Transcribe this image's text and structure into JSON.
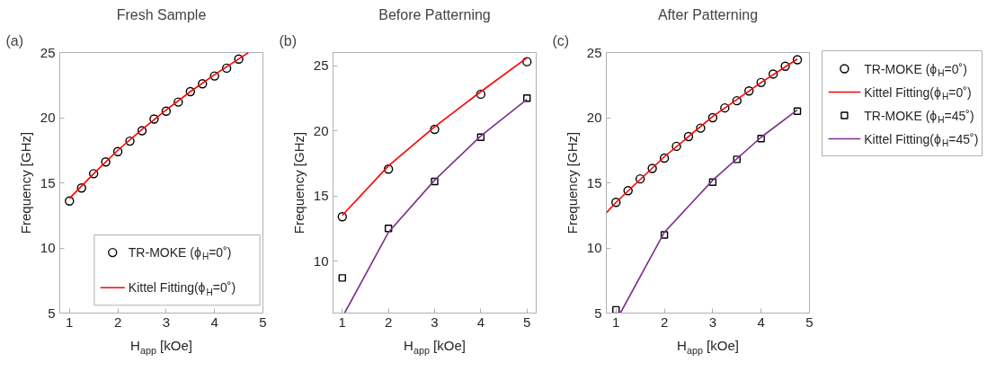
{
  "chart_data": [
    {
      "type": "scatter",
      "title": "Fresh Sample",
      "xlabel": "H$_{app}$ [kOe]",
      "ylabel": "Frequency [GHz]",
      "annotations": [
        "(a)"
      ],
      "xlim": [
        0.8,
        5
      ],
      "xticks": [
        1,
        2,
        3,
        4,
        5
      ],
      "ylim": [
        5,
        25
      ],
      "yticks": [
        5,
        10,
        15,
        20,
        25
      ],
      "legend": "bottom right",
      "series": [
        {
          "name": "TR-MOKE (ϕ$_{H}$=0˚)",
          "marker": "circle",
          "color": "#000000",
          "x": [
            1,
            1.25,
            1.5,
            1.75,
            2,
            2.25,
            2.5,
            2.75,
            3,
            3.25,
            3.5,
            3.75,
            4,
            4.25,
            4.5
          ],
          "values": [
            13.6,
            14.6,
            15.7,
            16.6,
            17.4,
            18.2,
            19.0,
            19.9,
            20.5,
            21.2,
            22.0,
            22.6,
            23.2,
            23.8,
            24.5
          ]
        },
        {
          "name": "Kittel Fitting(ϕ$_{H}$=0˚)",
          "type": "line",
          "color": "#ff0000",
          "x": [
            1,
            1.5,
            2,
            2.5,
            3,
            3.5,
            4,
            4.7
          ],
          "values": [
            13.8,
            15.7,
            17.5,
            19.1,
            20.6,
            22.0,
            23.3,
            25.0
          ]
        }
      ]
    },
    {
      "type": "scatter",
      "title": "Before Patterning",
      "xlabel": "H$_{app}$ [kOe]",
      "ylabel": "Frequency [GHz]",
      "annotations": [
        "(b)"
      ],
      "xlim": [
        0.8,
        5.2
      ],
      "xticks": [
        1,
        2,
        3,
        4,
        5
      ],
      "ylim": [
        6,
        26
      ],
      "yticks": [
        10,
        15,
        20,
        25
      ],
      "series": [
        {
          "marker": "circle",
          "color": "#000000",
          "x": [
            1,
            2,
            3,
            4,
            5
          ],
          "values": [
            13.4,
            17.05,
            20.1,
            22.8,
            25.3
          ]
        },
        {
          "type": "line",
          "color": "#ff0000",
          "x": [
            1,
            2,
            3,
            4,
            5
          ],
          "values": [
            13.5,
            17.3,
            20.3,
            23.0,
            25.6
          ]
        },
        {
          "marker": "square",
          "color": "#000000",
          "x": [
            1,
            2,
            3,
            4,
            5
          ],
          "values": [
            8.7,
            12.5,
            16.1,
            19.5,
            22.5
          ]
        },
        {
          "type": "line",
          "color": "#7e2f8e",
          "x": [
            1.05,
            2,
            3,
            4,
            5
          ],
          "values": [
            6.0,
            12.2,
            16.2,
            19.6,
            22.4
          ]
        }
      ]
    },
    {
      "type": "scatter",
      "title": "After Patterning",
      "xlabel": "H$_{app}$ [kOe]",
      "ylabel": "Frequency [GHz]",
      "annotations": [
        "(c)"
      ],
      "xlim": [
        0.8,
        5
      ],
      "xticks": [
        1,
        2,
        3,
        4,
        5
      ],
      "ylim": [
        5,
        25
      ],
      "yticks": [
        5,
        10,
        15,
        20,
        25
      ],
      "legend": "right",
      "series": [
        {
          "name": "TR-MOKE (ϕ$_{H}$=0˚)",
          "marker": "circle",
          "color": "#000000",
          "x": [
            1,
            1.25,
            1.5,
            1.75,
            2,
            2.25,
            2.5,
            2.75,
            3,
            3.25,
            3.5,
            3.75,
            4,
            4.25,
            4.5,
            4.75
          ],
          "values": [
            13.5,
            14.4,
            15.3,
            16.1,
            16.9,
            17.8,
            18.55,
            19.2,
            20.0,
            20.75,
            21.3,
            22.05,
            22.7,
            23.35,
            23.95,
            24.45
          ]
        },
        {
          "name": "Kittel Fitting(ϕ$_{H}$=0˚)",
          "type": "line",
          "color": "#ff0000",
          "x": [
            0.8,
            1,
            2,
            3,
            4,
            4.75
          ],
          "values": [
            12.7,
            13.5,
            17.0,
            20.1,
            22.7,
            24.5
          ]
        },
        {
          "name": "TR-MOKE (ϕ$_{H}$=45˚)",
          "marker": "square",
          "color": "#000000",
          "x": [
            1,
            2,
            3,
            3.5,
            4,
            4.75
          ],
          "values": [
            5.25,
            11.0,
            15.05,
            16.8,
            18.4,
            20.5
          ]
        },
        {
          "name": "Kittel Fitting(ϕ$_{H}$=45˚)",
          "type": "line",
          "color": "#7e2f8e",
          "x": [
            1.09,
            2,
            3,
            4,
            4.75
          ],
          "values": [
            5.0,
            11.2,
            15.2,
            18.5,
            20.6
          ]
        }
      ]
    }
  ]
}
